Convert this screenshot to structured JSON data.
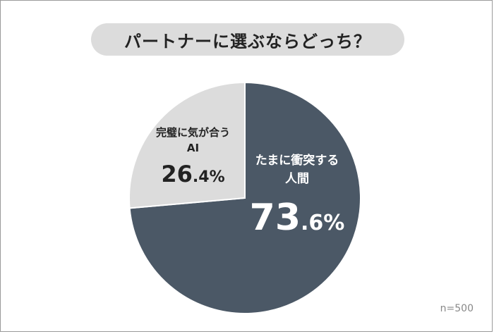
{
  "chart_data": {
    "type": "pie",
    "title": "パートナーに選ぶならどっち？",
    "slices": [
      {
        "name_lines": [
          "たまに衝突する",
          "人間"
        ],
        "value": 73.6,
        "value_int": "73",
        "value_dec": ".6%",
        "color": "#4b5866"
      },
      {
        "name_lines": [
          "完璧に気が合う",
          "AI"
        ],
        "value": 26.4,
        "value_int": "26",
        "value_dec": ".4%",
        "color": "#dcdcdc"
      }
    ],
    "note": "n=500"
  }
}
